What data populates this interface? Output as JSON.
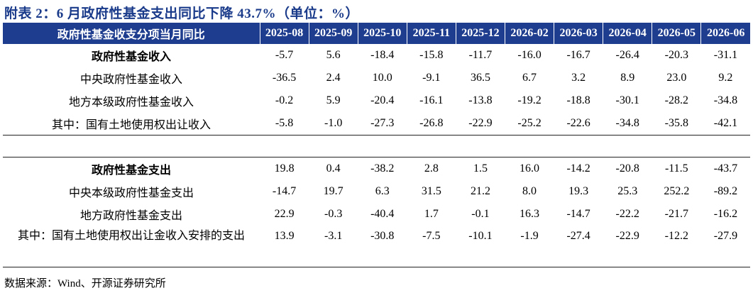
{
  "title": "附表 2：6 月政府性基金支出同比下降 43.7%（单位：%）",
  "header": {
    "label": "政府性基金收支分项当月同比",
    "columns": [
      "2025-08",
      "2025-09",
      "2025-10",
      "2025-11",
      "2025-12",
      "2026-02",
      "2026-03",
      "2026-04",
      "2026-05",
      "2026-06"
    ]
  },
  "rows": [
    {
      "label": "政府性基金收入",
      "values": [
        "-5.7",
        "5.6",
        "-18.4",
        "-15.8",
        "-11.7",
        "-16.0",
        "-16.7",
        "-26.4",
        "-20.3",
        "-31.1"
      ]
    },
    {
      "label": "中央政府性基金收入",
      "values": [
        "-36.5",
        "2.4",
        "10.0",
        "-9.1",
        "36.5",
        "6.7",
        "3.2",
        "8.9",
        "23.0",
        "9.2"
      ]
    },
    {
      "label": "地方本级政府性基金收入",
      "values": [
        "-0.2",
        "5.9",
        "-20.4",
        "-16.1",
        "-13.8",
        "-19.2",
        "-18.8",
        "-30.1",
        "-28.2",
        "-34.8"
      ]
    },
    {
      "label": "其中：国有土地使用权出让收入",
      "values": [
        "-5.8",
        "-1.0",
        "-27.3",
        "-26.8",
        "-22.9",
        "-25.2",
        "-22.6",
        "-34.8",
        "-35.8",
        "-42.1"
      ]
    },
    {
      "label": "政府性基金支出",
      "values": [
        "19.8",
        "0.4",
        "-38.2",
        "2.8",
        "1.5",
        "16.0",
        "-14.2",
        "-20.8",
        "-11.5",
        "-43.7"
      ]
    },
    {
      "label": "中央本级政府性基金支出",
      "values": [
        "-14.7",
        "19.7",
        "6.3",
        "31.5",
        "21.2",
        "8.0",
        "19.3",
        "25.3",
        "252.2",
        "-89.2"
      ]
    },
    {
      "label": "地方政府性基金支出",
      "values": [
        "22.9",
        "-0.3",
        "-40.4",
        "1.7",
        "-0.1",
        "16.3",
        "-14.7",
        "-22.2",
        "-21.7",
        "-16.2"
      ]
    },
    {
      "label": "其中：国有土地使用权出让金收入安排的支出",
      "values": [
        "13.9",
        "-3.1",
        "-30.8",
        "-7.5",
        "-10.1",
        "-1.9",
        "-27.4",
        "-22.9",
        "-12.2",
        "-27.9"
      ]
    }
  ],
  "source": "数据来源：Wind、开源证券研究所",
  "colors": {
    "title": "#1a3a8a",
    "header_bg": "#1f3d8f",
    "header_text": "#ffffff"
  }
}
